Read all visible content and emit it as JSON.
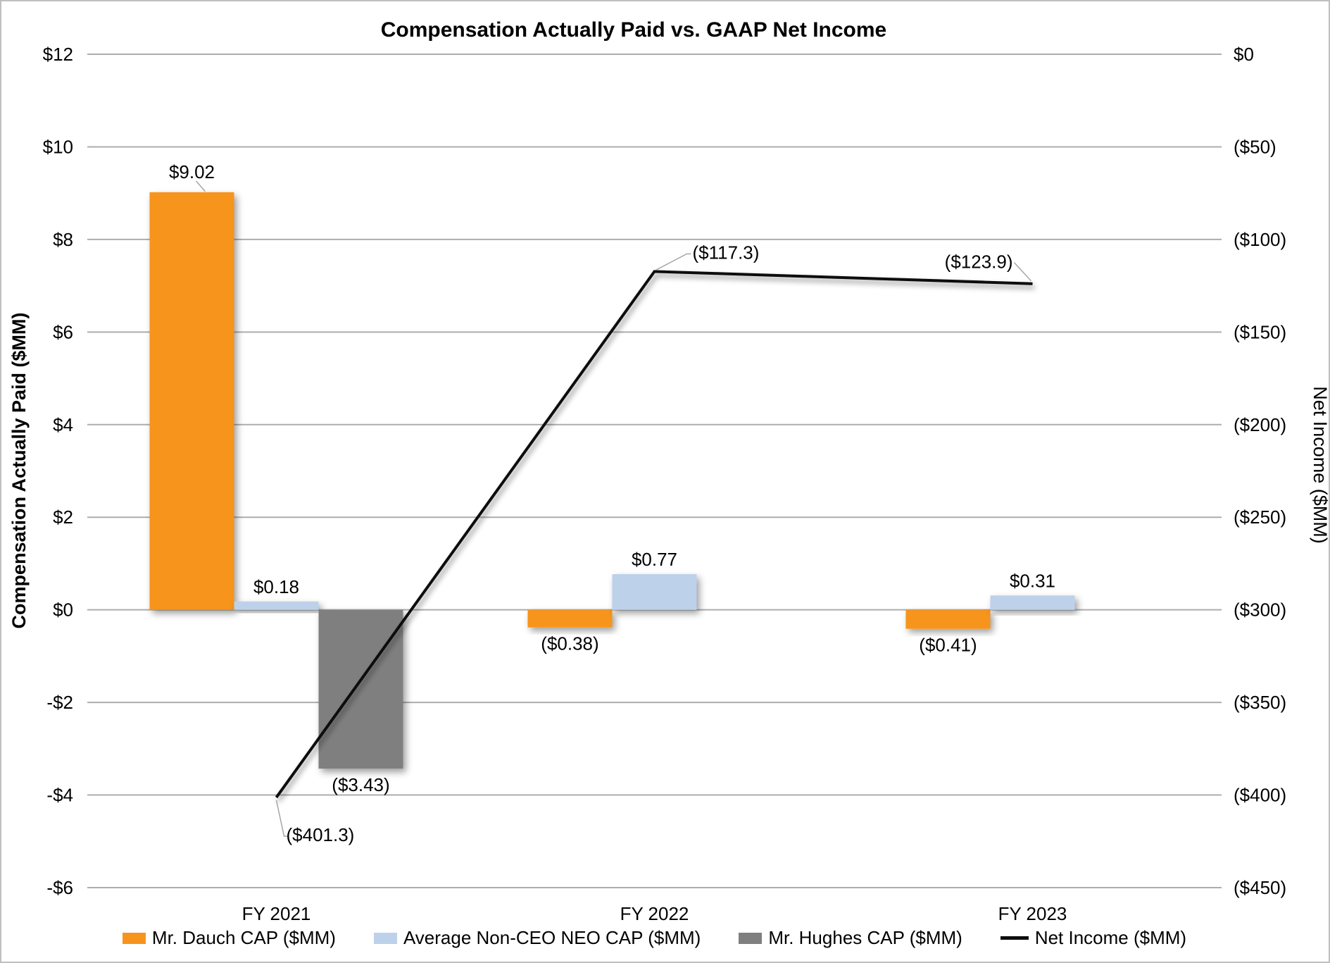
{
  "chart_data": {
    "type": "bar",
    "title": "Compensation Actually Paid vs. GAAP Net Income",
    "categories": [
      "FY 2021",
      "FY 2022",
      "FY 2023"
    ],
    "left_axis": {
      "label": "Compensation Actually Paid ($MM)",
      "min": -6,
      "max": 12,
      "step": 2,
      "ticks": [
        "$12",
        "$10",
        "$8",
        "$6",
        "$4",
        "$2",
        "$0",
        "-$2",
        "-$4",
        "-$6"
      ]
    },
    "right_axis": {
      "label": "Net Income ($MM)",
      "min": -450,
      "max": 0,
      "step": 50,
      "ticks": [
        "$0",
        "($50)",
        "($100)",
        "($150)",
        "($200)",
        "($250)",
        "($300)",
        "($350)",
        "($400)",
        "($450)"
      ]
    },
    "series": [
      {
        "name": "Mr. Dauch CAP ($MM)",
        "color": "#F7941E",
        "values": [
          9.02,
          -0.38,
          -0.41
        ],
        "labels": [
          "$9.02",
          "($0.38)",
          "($0.41)"
        ]
      },
      {
        "name": "Average Non-CEO NEO CAP ($MM)",
        "color": "#BDD1EA",
        "values": [
          0.18,
          0.77,
          0.31
        ],
        "labels": [
          "$0.18",
          "$0.77",
          "$0.31"
        ]
      },
      {
        "name": "Mr. Hughes CAP ($MM)",
        "color": "#7F7F7F",
        "values": [
          -3.43,
          null,
          null
        ],
        "labels": [
          "($3.43)",
          null,
          null
        ]
      }
    ],
    "line_series": {
      "name": "Net Income ($MM)",
      "color": "#0d0d0d",
      "values": [
        -401.3,
        -117.3,
        -123.9
      ],
      "labels": [
        "($401.3)",
        "($117.3)",
        "($123.9)"
      ]
    },
    "grid": true,
    "legend_position": "bottom",
    "colors": {
      "grid": "#ADADAD",
      "frame": "#BFBFBF",
      "leader": "#A6A6A6"
    }
  }
}
